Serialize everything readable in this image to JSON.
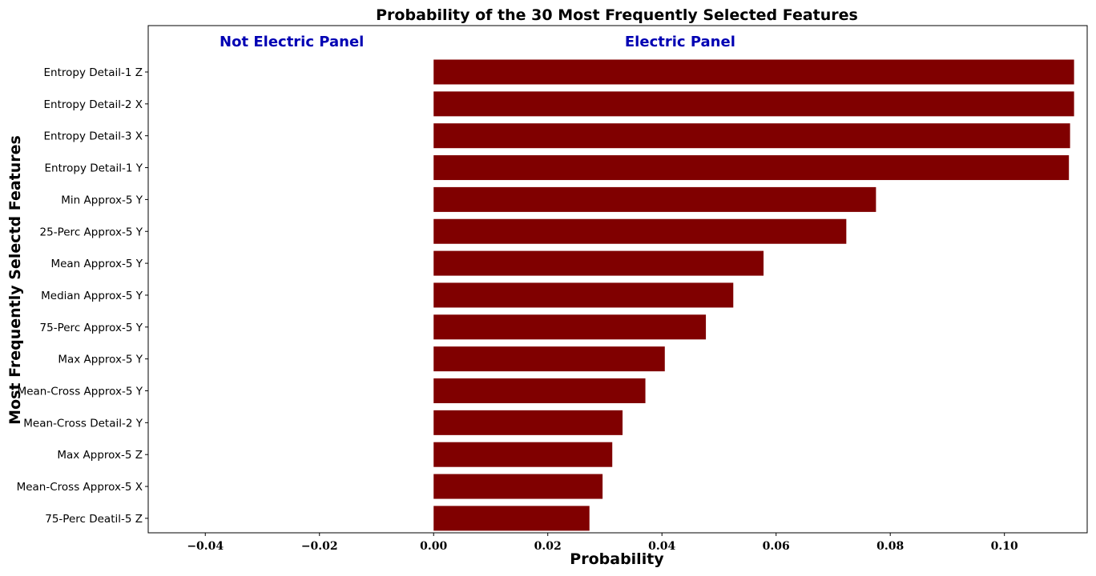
{
  "chart_data": {
    "type": "bar",
    "orientation": "horizontal",
    "title": "Probability of the 30 Most Frequently Selected Features",
    "xlabel": "Probability",
    "ylabel": "Most Frequently Selectd Features",
    "xlim": [
      -0.05,
      0.1145
    ],
    "xticks": [
      -0.04,
      -0.02,
      0.0,
      0.02,
      0.04,
      0.06,
      0.08,
      0.1
    ],
    "xtick_labels": [
      "−0.04",
      "−0.02",
      "0.00",
      "0.02",
      "0.04",
      "0.06",
      "0.08",
      "0.10"
    ],
    "grid": false,
    "bar_color": "#800000",
    "annotation_color": "#0000b3",
    "annotations": [
      {
        "text": "Not Electric Panel",
        "x": -0.0375
      },
      {
        "text": "Electric Panel",
        "x": 0.0335
      }
    ],
    "categories": [
      "Entropy Detail-1 Z",
      "Entropy Detail-2 X",
      "Entropy Detail-3 X",
      "Entropy Detail-1 Y",
      "Min Approx-5 Y",
      "25-Perc Approx-5 Y",
      "Mean Approx-5 Y",
      "Median Approx-5 Y",
      "75-Perc Approx-5 Y",
      "Max Approx-5 Y",
      "Mean-Cross Approx-5 Y",
      "Mean-Cross Detail-2 Y",
      "Max Approx-5 Z",
      "Mean-Cross Approx-5 X",
      "75-Perc Deatil-5 Z"
    ],
    "values": [
      0.1122,
      0.1122,
      0.1115,
      0.1113,
      0.0775,
      0.0723,
      0.0578,
      0.0525,
      0.0477,
      0.0405,
      0.0371,
      0.0331,
      0.0313,
      0.0296,
      0.0273
    ]
  }
}
